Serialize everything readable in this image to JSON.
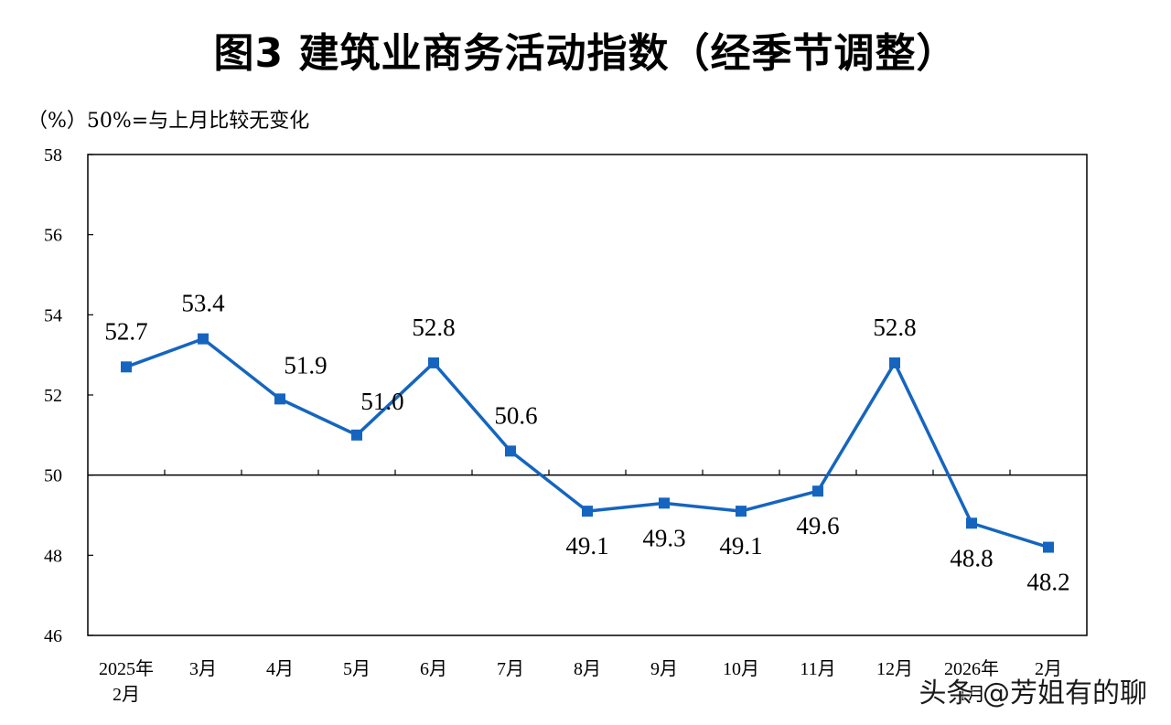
{
  "title": "图3  建筑业商务活动指数（经季节调整）",
  "unit_note": "（%）50%=与上月比较无变化",
  "watermark": "头条 @芳姐有的聊",
  "chart_data": {
    "type": "line",
    "title": "图3  建筑业商务活动指数（经季节调整）",
    "ylabel": "（%）50%=与上月比较无变化",
    "xlabel": "",
    "ylim": [
      46,
      58
    ],
    "yticks": [
      46,
      48,
      50,
      52,
      54,
      56,
      58
    ],
    "reference_line": 50,
    "grid": false,
    "line_color": "#1565c0",
    "categories": [
      [
        "2025年",
        "2月"
      ],
      [
        "3月"
      ],
      [
        "4月"
      ],
      [
        "5月"
      ],
      [
        "6月"
      ],
      [
        "7月"
      ],
      [
        "8月"
      ],
      [
        "9月"
      ],
      [
        "10月"
      ],
      [
        "11月"
      ],
      [
        "12月"
      ],
      [
        "2026年",
        "1月"
      ],
      [
        "2月"
      ]
    ],
    "series": [
      {
        "values": [
          52.7,
          53.4,
          51.9,
          51.0,
          52.8,
          50.6,
          49.1,
          49.3,
          49.1,
          49.6,
          52.8,
          48.8,
          48.2
        ],
        "labels": [
          "52.7",
          "53.4",
          "51.9",
          "51.0",
          "52.8",
          "50.6",
          "49.1",
          "49.3",
          "49.1",
          "49.6",
          "52.8",
          "48.8",
          "48.2"
        ]
      }
    ]
  }
}
